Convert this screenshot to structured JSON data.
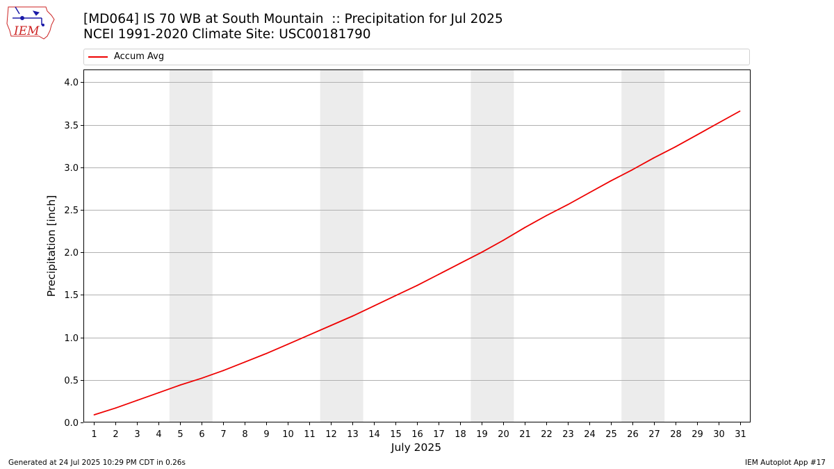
{
  "header": {
    "title_line1": "[MD064] IS 70 WB at South Mountain  :: Precipitation for Jul 2025",
    "title_line2": "NCEI 1991-2020 Climate Site: USC00181790"
  },
  "logo": {
    "text": "IEM",
    "color": "#cc2222",
    "accent": "#1a1aa8"
  },
  "footer": {
    "left": "Generated at 24 Jul 2025 10:29 PM CDT in 0.26s",
    "right": "IEM Autoplot App #17"
  },
  "colors": {
    "series": "#ee0000",
    "weekend_band": "#ececec",
    "grid": "#b0b0b0"
  },
  "chart_data": {
    "type": "line",
    "xlabel": "July 2025",
    "ylabel": "Precipitation [inch]",
    "xlim": [
      0.5,
      31.5
    ],
    "ylim": [
      0,
      4.15
    ],
    "x_ticks": [
      1,
      2,
      3,
      4,
      5,
      6,
      7,
      8,
      9,
      10,
      11,
      12,
      13,
      14,
      15,
      16,
      17,
      18,
      19,
      20,
      21,
      22,
      23,
      24,
      25,
      26,
      27,
      28,
      29,
      30,
      31
    ],
    "y_ticks": [
      0.0,
      0.5,
      1.0,
      1.5,
      2.0,
      2.5,
      3.0,
      3.5,
      4.0
    ],
    "y_tick_labels": [
      "0.0",
      "0.5",
      "1.0",
      "1.5",
      "2.0",
      "2.5",
      "3.0",
      "3.5",
      "4.0"
    ],
    "grid": "horizontal",
    "legend_position": "top",
    "shaded_spans": [
      [
        4.5,
        6.5
      ],
      [
        11.5,
        13.5
      ],
      [
        18.5,
        20.5
      ],
      [
        25.5,
        27.5
      ]
    ],
    "series": [
      {
        "name": "Accum Avg",
        "color": "#ee0000",
        "x": [
          1,
          2,
          3,
          4,
          5,
          6,
          7,
          8,
          9,
          10,
          11,
          12,
          13,
          14,
          15,
          16,
          17,
          18,
          19,
          20,
          21,
          22,
          23,
          24,
          25,
          26,
          27,
          28,
          29,
          30,
          31
        ],
        "y": [
          0.09,
          0.17,
          0.26,
          0.35,
          0.44,
          0.52,
          0.61,
          0.71,
          0.81,
          0.92,
          1.03,
          1.14,
          1.25,
          1.37,
          1.49,
          1.61,
          1.74,
          1.87,
          2.0,
          2.14,
          2.29,
          2.43,
          2.56,
          2.7,
          2.84,
          2.97,
          3.11,
          3.24,
          3.38,
          3.52,
          3.66
        ]
      }
    ]
  }
}
